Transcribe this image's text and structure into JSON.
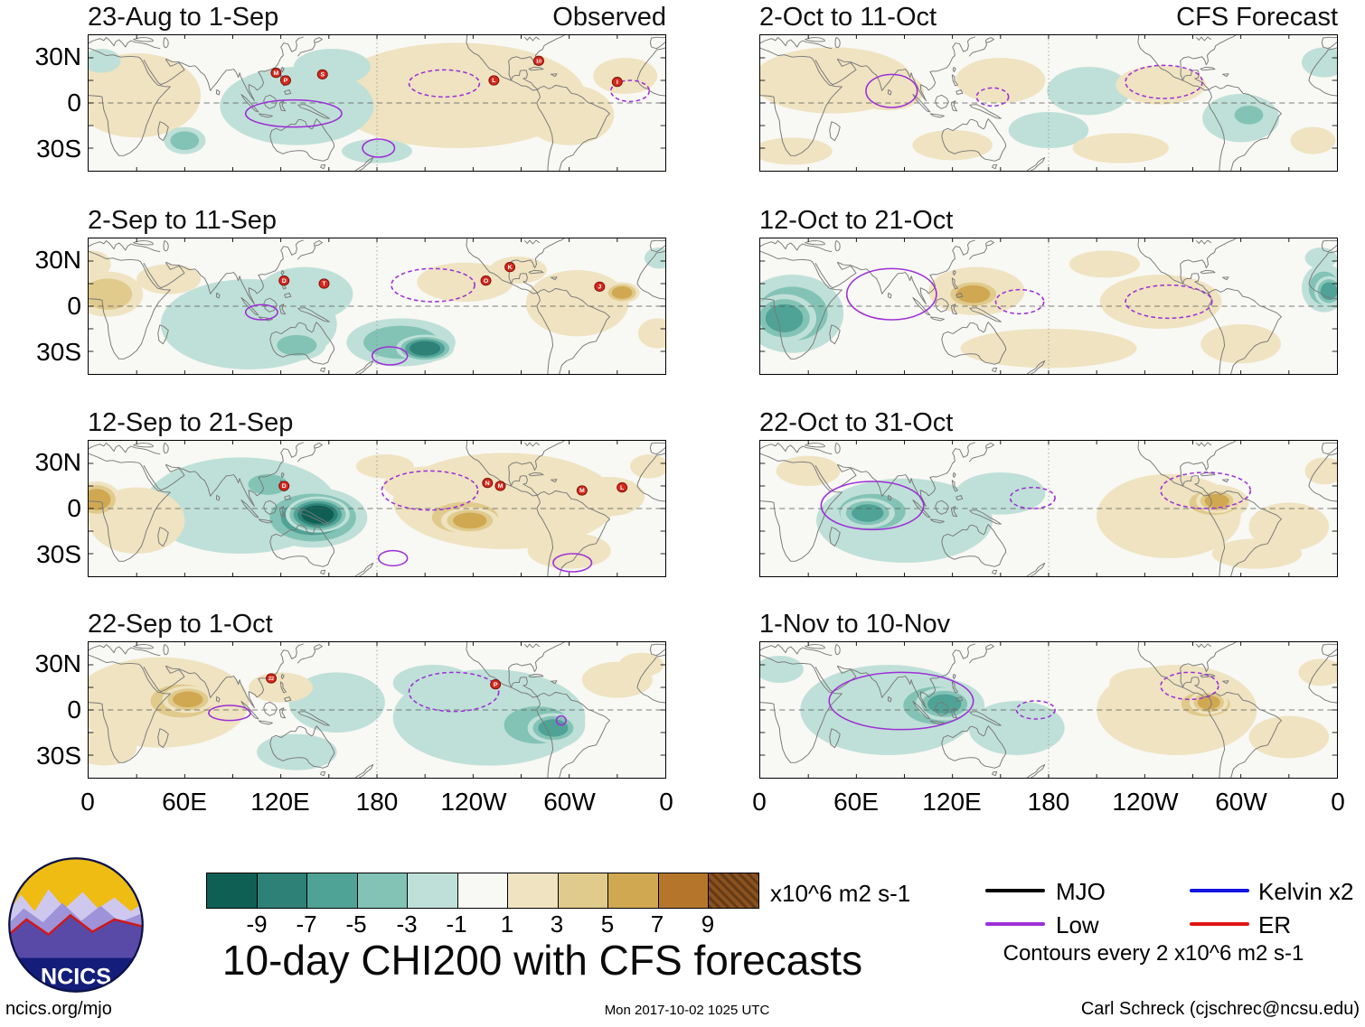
{
  "figure": {
    "title": "10-day CHI200 with CFS forecasts",
    "logo_text": "NCICS",
    "footer": {
      "left": "ncics.org/mjo",
      "center": "Mon 2017-10-02 1025 UTC",
      "right": "Carl Schreck (cjschrec@ncsu.edu)"
    }
  },
  "chart_data": {
    "type": "heatmap",
    "title": "10-day CHI200 with CFS forecasts",
    "variable": "200-hPa velocity potential (CHI200) anomalies, observed and CFS forecast, with tropical cyclone positions",
    "units": "x10^6 m2 s-1",
    "column_labels": [
      "Observed",
      "CFS Forecast"
    ],
    "axes": {
      "x_ticks": [
        "0",
        "60E",
        "120E",
        "180",
        "120W",
        "60W",
        "0"
      ],
      "x_range_deg": [
        0,
        360
      ],
      "y_ticks": [
        "30N",
        "0",
        "30S"
      ],
      "y_range_deg": [
        45,
        -45
      ],
      "grid": "equator dashed, dateline dotted"
    },
    "colorbar": {
      "labels": [
        "-9",
        "-7",
        "-5",
        "-3",
        "-1",
        "1",
        "3",
        "5",
        "7",
        "9"
      ],
      "levels": [
        -9,
        -7,
        -5,
        -3,
        -1,
        1,
        3,
        5,
        7,
        9
      ],
      "colors": [
        "#0f5f55",
        "#2d8177",
        "#4fa396",
        "#83c3b6",
        "#bfe0d8",
        "#f8f8f4",
        "#efe3c1",
        "#e0ca8c",
        "#d0a852",
        "#b5762c",
        "#8a5220"
      ],
      "units_label": "x10^6 m2 s-1"
    },
    "legend": [
      {
        "label": "MJO",
        "color": "#000000"
      },
      {
        "label": "Low",
        "color": "#9d2fd6"
      },
      {
        "label": "Kelvin x2",
        "color": "#1414e0"
      },
      {
        "label": "ER",
        "color": "#e01414"
      }
    ],
    "contour_note": "Contours every 2 x10^6 m2 s-1",
    "panels": [
      {
        "title": "23-Aug to 1-Sep",
        "column": "Observed",
        "anomalies": [
          [
            30,
            5,
            40,
            28,
            2
          ],
          [
            230,
            5,
            80,
            35,
            2
          ],
          [
            130,
            -2,
            48,
            26,
            -3
          ],
          [
            152,
            24,
            24,
            12,
            -3
          ],
          [
            60,
            -25,
            13,
            9,
            -5
          ],
          [
            8,
            28,
            12,
            8,
            -3
          ],
          [
            210,
            12,
            30,
            13,
            3
          ],
          [
            245,
            -8,
            25,
            12,
            3
          ],
          [
            300,
            -8,
            28,
            20,
            3
          ],
          [
            335,
            18,
            20,
            12,
            3
          ],
          [
            180,
            -32,
            22,
            8,
            -2
          ]
        ],
        "contours": [
          [
            128,
            -7,
            30,
            9,
            "solid"
          ],
          [
            181,
            -30,
            10,
            6,
            "solid"
          ],
          [
            222,
            13,
            22,
            9,
            "dashed"
          ],
          [
            338,
            8,
            12,
            7,
            "dashed"
          ]
        ],
        "storms": [
          [
            117,
            20,
            "M"
          ],
          [
            123,
            15,
            "P"
          ],
          [
            146,
            19,
            "S"
          ],
          [
            281,
            28,
            "10"
          ],
          [
            253,
            15,
            "L"
          ],
          [
            330,
            14,
            "I"
          ]
        ]
      },
      {
        "title": "2-Sep to 11-Sep",
        "column": "Observed",
        "anomalies": [
          [
            100,
            -12,
            55,
            30,
            -3
          ],
          [
            135,
            8,
            30,
            18,
            -2
          ],
          [
            12,
            8,
            22,
            15,
            5
          ],
          [
            2,
            28,
            12,
            9,
            3
          ],
          [
            50,
            18,
            20,
            10,
            2
          ],
          [
            130,
            -26,
            18,
            10,
            -5
          ],
          [
            195,
            -24,
            34,
            16,
            -5
          ],
          [
            210,
            -28,
            18,
            9,
            -8
          ],
          [
            235,
            16,
            30,
            13,
            3
          ],
          [
            268,
            24,
            18,
            9,
            3
          ],
          [
            305,
            2,
            32,
            22,
            3
          ],
          [
            333,
            9,
            11,
            7,
            7
          ],
          [
            355,
            -18,
            12,
            10,
            3
          ],
          [
            356,
            32,
            9,
            7,
            -3
          ]
        ],
        "contours": [
          [
            215,
            14,
            26,
            11,
            "dashed"
          ],
          [
            108,
            -4,
            10,
            5,
            "solid"
          ],
          [
            188,
            -33,
            11,
            6,
            "solid"
          ]
        ],
        "storms": [
          [
            122,
            17,
            "D"
          ],
          [
            147,
            15,
            "T"
          ],
          [
            248,
            17,
            "O"
          ],
          [
            263,
            26,
            "K"
          ],
          [
            319,
            13,
            "J"
          ]
        ]
      },
      {
        "title": "12-Sep to 21-Sep",
        "column": "Observed",
        "anomalies": [
          [
            95,
            2,
            60,
            32,
            -3
          ],
          [
            30,
            -8,
            30,
            22,
            3
          ],
          [
            5,
            6,
            15,
            12,
            6
          ],
          [
            260,
            5,
            70,
            32,
            2
          ],
          [
            140,
            -6,
            34,
            20,
            -7
          ],
          [
            143,
            -4,
            20,
            12,
            -10
          ],
          [
            112,
            16,
            18,
            10,
            -5
          ],
          [
            235,
            -6,
            30,
            15,
            5
          ],
          [
            238,
            -8,
            18,
            9,
            7
          ],
          [
            212,
            16,
            28,
            12,
            3
          ],
          [
            300,
            -28,
            26,
            12,
            3
          ],
          [
            325,
            8,
            22,
            13,
            3
          ],
          [
            350,
            28,
            12,
            8,
            3
          ],
          [
            185,
            28,
            18,
            8,
            2
          ]
        ],
        "contours": [
          [
            213,
            12,
            30,
            13,
            "dashed"
          ],
          [
            190,
            -33,
            9,
            5,
            "solid"
          ],
          [
            302,
            -36,
            12,
            6,
            "solid"
          ]
        ],
        "storms": [
          [
            122,
            15,
            "D"
          ],
          [
            249,
            17,
            "N"
          ],
          [
            257,
            15,
            "M"
          ],
          [
            308,
            12,
            "M"
          ],
          [
            333,
            14,
            "L"
          ]
        ]
      },
      {
        "title": "22-Sep to 1-Oct",
        "column": "Observed",
        "anomalies": [
          [
            45,
            5,
            55,
            30,
            3
          ],
          [
            250,
            -5,
            60,
            32,
            -3
          ],
          [
            58,
            6,
            28,
            16,
            5
          ],
          [
            62,
            7,
            16,
            9,
            7
          ],
          [
            10,
            -25,
            20,
            12,
            3
          ],
          [
            280,
            -10,
            30,
            18,
            -5
          ],
          [
            290,
            -12,
            16,
            10,
            -7
          ],
          [
            130,
            -28,
            25,
            12,
            -3
          ],
          [
            155,
            5,
            30,
            20,
            -2
          ],
          [
            215,
            18,
            25,
            12,
            -2
          ],
          [
            330,
            20,
            22,
            12,
            2
          ],
          [
            345,
            30,
            14,
            8,
            3
          ],
          [
            120,
            15,
            20,
            10,
            2
          ]
        ],
        "contours": [
          [
            228,
            12,
            28,
            13,
            "dashed"
          ],
          [
            88,
            -2,
            13,
            5,
            "solid"
          ],
          [
            295,
            -7,
            3,
            3,
            "solid"
          ]
        ],
        "storms": [
          [
            114,
            21,
            "22"
          ],
          [
            254,
            17,
            "P"
          ]
        ]
      },
      {
        "title": "2-Oct to 11-Oct",
        "column": "CFS Forecast",
        "anomalies": [
          [
            45,
            15,
            50,
            22,
            3
          ],
          [
            80,
            8,
            22,
            13,
            3
          ],
          [
            150,
            15,
            28,
            15,
            3
          ],
          [
            120,
            -28,
            25,
            10,
            2
          ],
          [
            205,
            8,
            26,
            16,
            -3
          ],
          [
            180,
            -18,
            25,
            12,
            -2
          ],
          [
            250,
            12,
            28,
            13,
            3
          ],
          [
            225,
            -30,
            30,
            10,
            3
          ],
          [
            300,
            -10,
            24,
            16,
            -3
          ],
          [
            305,
            -8,
            13,
            9,
            -5
          ],
          [
            352,
            27,
            14,
            10,
            -3
          ],
          [
            20,
            -32,
            25,
            9,
            3
          ],
          [
            345,
            -25,
            14,
            9,
            2
          ]
        ],
        "contours": [
          [
            82,
            8,
            16,
            11,
            "solid"
          ],
          [
            145,
            4,
            10,
            6,
            "dashed"
          ],
          [
            252,
            14,
            24,
            11,
            "dashed"
          ]
        ],
        "storms": []
      },
      {
        "title": "12-Oct to 21-Oct",
        "column": "CFS Forecast",
        "anomalies": [
          [
            180,
            -28,
            55,
            13,
            3
          ],
          [
            20,
            -5,
            32,
            26,
            -5
          ],
          [
            15,
            -8,
            20,
            16,
            -7
          ],
          [
            352,
            12,
            14,
            16,
            -5
          ],
          [
            355,
            10,
            9,
            10,
            -7
          ],
          [
            135,
            10,
            30,
            16,
            3
          ],
          [
            133,
            8,
            18,
            10,
            6
          ],
          [
            250,
            3,
            38,
            18,
            3
          ],
          [
            215,
            28,
            22,
            9,
            3
          ],
          [
            300,
            -25,
            25,
            13,
            3
          ],
          [
            350,
            32,
            10,
            7,
            -3
          ]
        ],
        "contours": [
          [
            82,
            8,
            28,
            17,
            "solid"
          ],
          [
            162,
            3,
            15,
            8,
            "dashed"
          ],
          [
            255,
            3,
            27,
            11,
            "dashed"
          ]
        ],
        "storms": []
      },
      {
        "title": "22-Oct to 31-Oct",
        "column": "CFS Forecast",
        "anomalies": [
          [
            90,
            -8,
            55,
            28,
            -3
          ],
          [
            255,
            -5,
            45,
            28,
            3
          ],
          [
            70,
            -2,
            30,
            17,
            -5
          ],
          [
            67,
            -3,
            17,
            10,
            -6
          ],
          [
            150,
            10,
            28,
            14,
            -2
          ],
          [
            30,
            25,
            20,
            10,
            2
          ],
          [
            283,
            4,
            22,
            12,
            5
          ],
          [
            285,
            5,
            13,
            8,
            6
          ],
          [
            330,
            -12,
            25,
            16,
            3
          ],
          [
            310,
            -30,
            28,
            10,
            3
          ],
          [
            352,
            25,
            12,
            9,
            3
          ]
        ],
        "contours": [
          [
            70,
            2,
            32,
            16,
            "solid"
          ],
          [
            170,
            7,
            14,
            7,
            "dashed"
          ],
          [
            278,
            12,
            28,
            12,
            "dashed"
          ]
        ],
        "storms": []
      },
      {
        "title": "1-Nov to 10-Nov",
        "column": "CFS Forecast",
        "anomalies": [
          [
            80,
            0,
            55,
            30,
            -3
          ],
          [
            260,
            0,
            50,
            30,
            3
          ],
          [
            110,
            3,
            30,
            18,
            -5
          ],
          [
            115,
            4,
            18,
            11,
            -7
          ],
          [
            12,
            27,
            15,
            9,
            -3
          ],
          [
            160,
            -12,
            30,
            18,
            -3
          ],
          [
            278,
            4,
            22,
            12,
            5
          ],
          [
            280,
            5,
            12,
            8,
            6
          ],
          [
            330,
            -18,
            25,
            14,
            3
          ],
          [
            350,
            25,
            14,
            9,
            3
          ],
          [
            240,
            18,
            22,
            10,
            3
          ]
        ],
        "contours": [
          [
            88,
            6,
            45,
            19,
            "solid"
          ],
          [
            172,
            0,
            12,
            6,
            "dashed"
          ],
          [
            268,
            16,
            18,
            9,
            "dashed"
          ]
        ],
        "storms": []
      }
    ]
  }
}
